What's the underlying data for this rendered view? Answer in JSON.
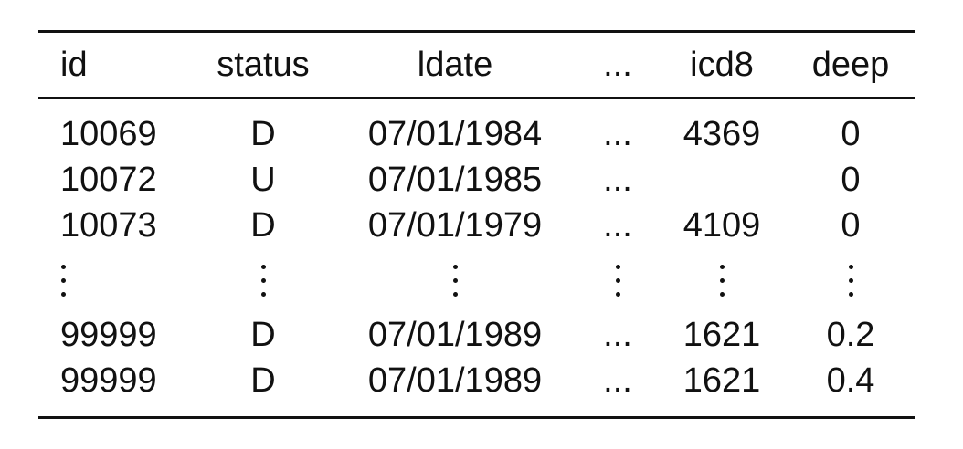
{
  "table": {
    "columns": [
      "id",
      "status",
      "ldate",
      "...",
      "icd8",
      "deep"
    ],
    "rows_top": [
      [
        "10069",
        "D",
        "07/01/1984",
        "...",
        "4369",
        "0"
      ],
      [
        "10072",
        "U",
        "07/01/1985",
        "...",
        "",
        "0"
      ],
      [
        "10073",
        "D",
        "07/01/1979",
        "...",
        "4109",
        "0"
      ]
    ],
    "rows_bottom": [
      [
        "99999",
        "D",
        "07/01/1989",
        "...",
        "1621",
        "0.2"
      ],
      [
        "99999",
        "D",
        "07/01/1989",
        "...",
        "1621",
        "0.4"
      ]
    ]
  }
}
